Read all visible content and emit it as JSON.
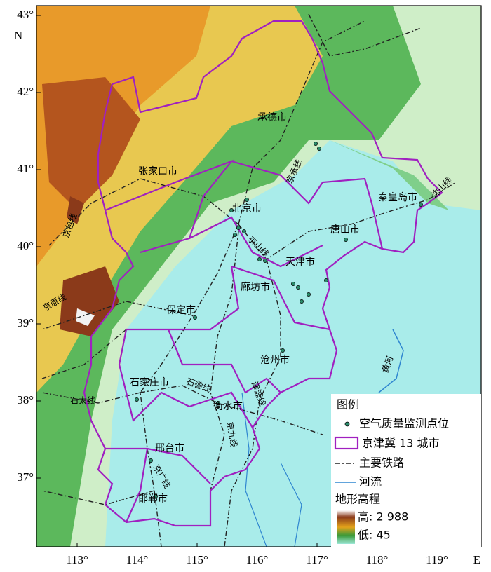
{
  "map": {
    "axes": {
      "lat": [
        "43°",
        "42°",
        "41°",
        "40°",
        "39°",
        "38°",
        "37°"
      ],
      "lat_unit": "N",
      "lon": [
        "113°",
        "114°",
        "115°",
        "116°",
        "117°",
        "118°",
        "119°"
      ],
      "lon_unit": "E"
    },
    "cities": [
      "承德市",
      "张家口市",
      "北京市",
      "秦皇岛市",
      "唐山市",
      "天津市",
      "廊坊市",
      "保定市",
      "沧州市",
      "石家庄市",
      "衡水市",
      "邢台市",
      "邯郸市"
    ],
    "railways": [
      "京承线",
      "沈山线",
      "京包线",
      "京山线",
      "京原线",
      "石太线",
      "石德线",
      "津浦线",
      "京九线",
      "京广线"
    ],
    "rivers": [
      "黄河"
    ],
    "legend": {
      "title": "图例",
      "items": [
        "空气质量监测点位",
        "京津冀 13 城市",
        "主要铁路",
        "河流"
      ],
      "elevation_title": "地形高程",
      "high": "高: 2 988",
      "low": "低: 45"
    }
  }
}
